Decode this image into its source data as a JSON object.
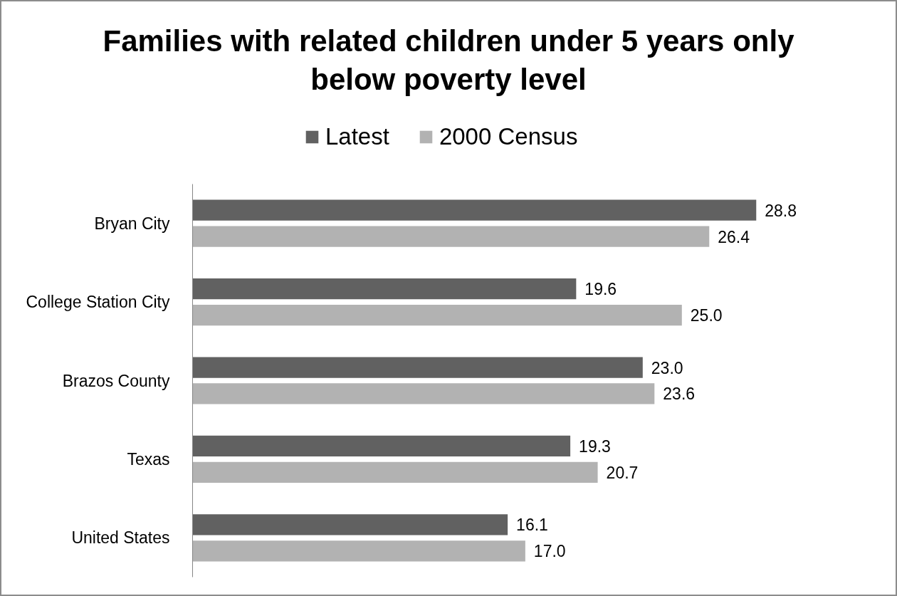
{
  "chart_data": {
    "type": "bar",
    "orientation": "horizontal",
    "title": "Families with related children under 5 years only below poverty level",
    "categories": [
      "Bryan City",
      "College Station City",
      "Brazos County",
      "Texas",
      "United States"
    ],
    "series": [
      {
        "name": "Latest",
        "color": "#616161",
        "values": [
          28.8,
          19.6,
          23.0,
          19.3,
          16.1
        ],
        "value_labels": [
          "28.8",
          "19.6",
          "23.0",
          "19.3",
          "16.1"
        ]
      },
      {
        "name": "2000 Census",
        "color": "#b2b2b2",
        "values": [
          26.4,
          25.0,
          23.6,
          20.7,
          17.0
        ],
        "value_labels": [
          "26.4",
          "25.0",
          "23.6",
          "20.7",
          "17.0"
        ]
      }
    ],
    "tick_labels": "y",
    "legend": "top"
  }
}
